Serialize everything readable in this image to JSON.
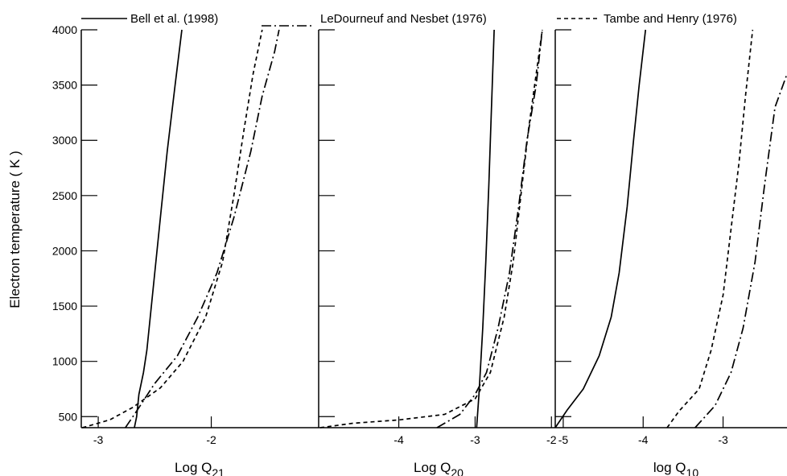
{
  "chart_data": {
    "type": "line",
    "ylabel": "Electron temperature ( K )",
    "ylim": [
      400,
      4000
    ],
    "y_ticks": [
      500,
      1000,
      1500,
      2000,
      2500,
      3000,
      3500,
      4000
    ],
    "grid": false,
    "legend": {
      "placement": "top",
      "entries": [
        {
          "label": "Bell et al. (1998)",
          "style": "solid"
        },
        {
          "label": "LeDourneuf and Nesbet (1976)",
          "style": "dashdot"
        },
        {
          "label": "Tambe and Henry (1976)",
          "style": "dashed"
        }
      ]
    },
    "panels": [
      {
        "xlabel": "Log  Q",
        "xlabel_sub": "21",
        "xlim": [
          -3.15,
          -1.05
        ],
        "x_ticks": [
          -3,
          -2
        ],
        "series": [
          {
            "name": "Bell et al. (1998)",
            "style": "solid",
            "points": [
              [
                -2.68,
                400
              ],
              [
                -2.66,
                500
              ],
              [
                -2.64,
                700
              ],
              [
                -2.6,
                900
              ],
              [
                -2.57,
                1100
              ],
              [
                -2.53,
                1500
              ],
              [
                -2.49,
                1900
              ],
              [
                -2.44,
                2400
              ],
              [
                -2.39,
                2900
              ],
              [
                -2.32,
                3500
              ],
              [
                -2.26,
                4000
              ]
            ]
          },
          {
            "name": "LeDourneuf and Nesbet (1976)",
            "style": "dashdot",
            "points": [
              [
                -2.76,
                400
              ],
              [
                -2.66,
                550
              ],
              [
                -2.5,
                800
              ],
              [
                -2.3,
                1050
              ],
              [
                -2.12,
                1400
              ],
              [
                -1.95,
                1800
              ],
              [
                -1.8,
                2300
              ],
              [
                -1.65,
                2900
              ],
              [
                -1.55,
                3400
              ],
              [
                -1.44,
                3800
              ],
              [
                -1.4,
                4000
              ]
            ]
          },
          {
            "name": "Tambe and Henry (1976)",
            "style": "dashed",
            "points": [
              [
                -3.14,
                400
              ],
              [
                -2.9,
                470
              ],
              [
                -2.7,
                580
              ],
              [
                -2.45,
                760
              ],
              [
                -2.25,
                1000
              ],
              [
                -2.05,
                1400
              ],
              [
                -1.9,
                1900
              ],
              [
                -1.8,
                2500
              ],
              [
                -1.71,
                3100
              ],
              [
                -1.63,
                3600
              ],
              [
                -1.55,
                4000
              ]
            ]
          }
        ]
      },
      {
        "xlabel": "Log Q",
        "xlabel_sub": "20",
        "xlim": [
          -5.05,
          -1.95
        ],
        "x_ticks": [
          -4,
          -3,
          -2
        ],
        "series": [
          {
            "name": "Bell et al. (1998)",
            "style": "solid",
            "points": [
              [
                -2.98,
                400
              ],
              [
                -2.95,
                700
              ],
              [
                -2.9,
                1300
              ],
              [
                -2.86,
                1900
              ],
              [
                -2.82,
                2600
              ],
              [
                -2.79,
                3200
              ],
              [
                -2.75,
                4000
              ]
            ]
          },
          {
            "name": "LeDourneuf and Nesbet (1976)",
            "style": "dashdot",
            "points": [
              [
                -3.5,
                400
              ],
              [
                -3.2,
                520
              ],
              [
                -3.0,
                700
              ],
              [
                -2.85,
                900
              ],
              [
                -2.7,
                1300
              ],
              [
                -2.55,
                1800
              ],
              [
                -2.43,
                2400
              ],
              [
                -2.32,
                3000
              ],
              [
                -2.2,
                3500
              ],
              [
                -2.12,
                4000
              ]
            ]
          },
          {
            "name": "Tambe and Henry (1976)",
            "style": "dashed",
            "points": [
              [
                -5.03,
                400
              ],
              [
                -4.6,
                440
              ],
              [
                -4.0,
                470
              ],
              [
                -3.4,
                520
              ],
              [
                -3.0,
                660
              ],
              [
                -2.8,
                900
              ],
              [
                -2.62,
                1400
              ],
              [
                -2.5,
                1900
              ],
              [
                -2.4,
                2500
              ],
              [
                -2.3,
                3100
              ],
              [
                -2.2,
                3600
              ],
              [
                -2.12,
                4000
              ]
            ]
          }
        ]
      },
      {
        "xlabel": "log Q",
        "xlabel_sub": "10",
        "xlim": [
          -5.1,
          -2.2
        ],
        "x_ticks": [
          -5,
          -4,
          -3
        ],
        "series": [
          {
            "name": "Bell et al. (1998)",
            "style": "solid",
            "points": [
              [
                -5.1,
                400
              ],
              [
                -4.95,
                560
              ],
              [
                -4.75,
                750
              ],
              [
                -4.55,
                1050
              ],
              [
                -4.4,
                1400
              ],
              [
                -4.3,
                1800
              ],
              [
                -4.2,
                2400
              ],
              [
                -4.12,
                3000
              ],
              [
                -4.05,
                3500
              ],
              [
                -3.97,
                4000
              ]
            ]
          },
          {
            "name": "LeDourneuf and Nesbet (1976)",
            "style": "dashdot",
            "points": [
              [
                -3.35,
                400
              ],
              [
                -3.1,
                600
              ],
              [
                -2.9,
                900
              ],
              [
                -2.75,
                1300
              ],
              [
                -2.6,
                1900
              ],
              [
                -2.48,
                2600
              ],
              [
                -2.35,
                3300
              ],
              [
                -2.2,
                3600
              ]
            ]
          },
          {
            "name": "Tambe and Henry (1976)",
            "style": "dashed",
            "points": [
              [
                -3.7,
                400
              ],
              [
                -3.55,
                550
              ],
              [
                -3.3,
                750
              ],
              [
                -3.15,
                1100
              ],
              [
                -3.0,
                1600
              ],
              [
                -2.9,
                2200
              ],
              [
                -2.8,
                2800
              ],
              [
                -2.72,
                3400
              ],
              [
                -2.63,
                4000
              ]
            ]
          }
        ]
      }
    ]
  }
}
